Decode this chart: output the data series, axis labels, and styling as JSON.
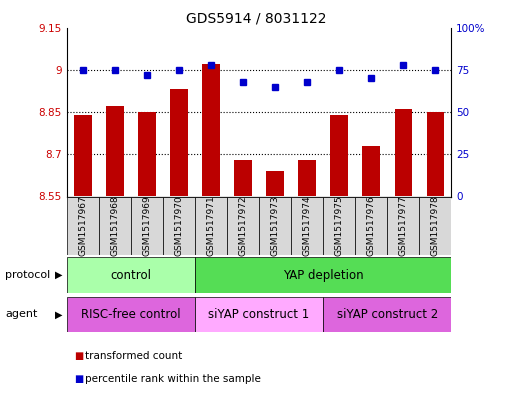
{
  "title": "GDS5914 / 8031122",
  "samples": [
    "GSM1517967",
    "GSM1517968",
    "GSM1517969",
    "GSM1517970",
    "GSM1517971",
    "GSM1517972",
    "GSM1517973",
    "GSM1517974",
    "GSM1517975",
    "GSM1517976",
    "GSM1517977",
    "GSM1517978"
  ],
  "red_values": [
    8.84,
    8.87,
    8.85,
    8.93,
    9.02,
    8.68,
    8.64,
    8.68,
    8.84,
    8.73,
    8.86,
    8.85
  ],
  "blue_values": [
    75,
    75,
    72,
    75,
    78,
    68,
    65,
    68,
    75,
    70,
    78,
    75
  ],
  "ylim_left": [
    8.55,
    9.15
  ],
  "ylim_right": [
    0,
    100
  ],
  "yticks_left": [
    8.55,
    8.7,
    8.85,
    9.0,
    9.15
  ],
  "yticks_right": [
    0,
    25,
    50,
    75,
    100
  ],
  "ytick_labels_left": [
    "8.55",
    "8.7",
    "8.85",
    "9",
    "9.15"
  ],
  "ytick_labels_right": [
    "0",
    "25",
    "50",
    "75",
    "100%"
  ],
  "grid_values": [
    8.7,
    8.85,
    9.0
  ],
  "protocol_labels": [
    "control",
    "YAP depletion"
  ],
  "protocol_ranges": [
    [
      0,
      4
    ],
    [
      4,
      12
    ]
  ],
  "protocol_colors": [
    "#aaffaa",
    "#55dd55"
  ],
  "agent_labels": [
    "RISC-free control",
    "siYAP construct 1",
    "siYAP construct 2"
  ],
  "agent_ranges": [
    [
      0,
      4
    ],
    [
      4,
      8
    ],
    [
      8,
      12
    ]
  ],
  "agent_colors": [
    "#dd66dd",
    "#ffaaff",
    "#dd66dd"
  ],
  "bar_color": "#bb0000",
  "dot_color": "#0000cc",
  "bar_base": 8.55,
  "legend_red": "transformed count",
  "legend_blue": "percentile rank within the sample",
  "bg_color": "#ffffff",
  "title_fontsize": 10,
  "sample_bg_color": "#d8d8d8"
}
